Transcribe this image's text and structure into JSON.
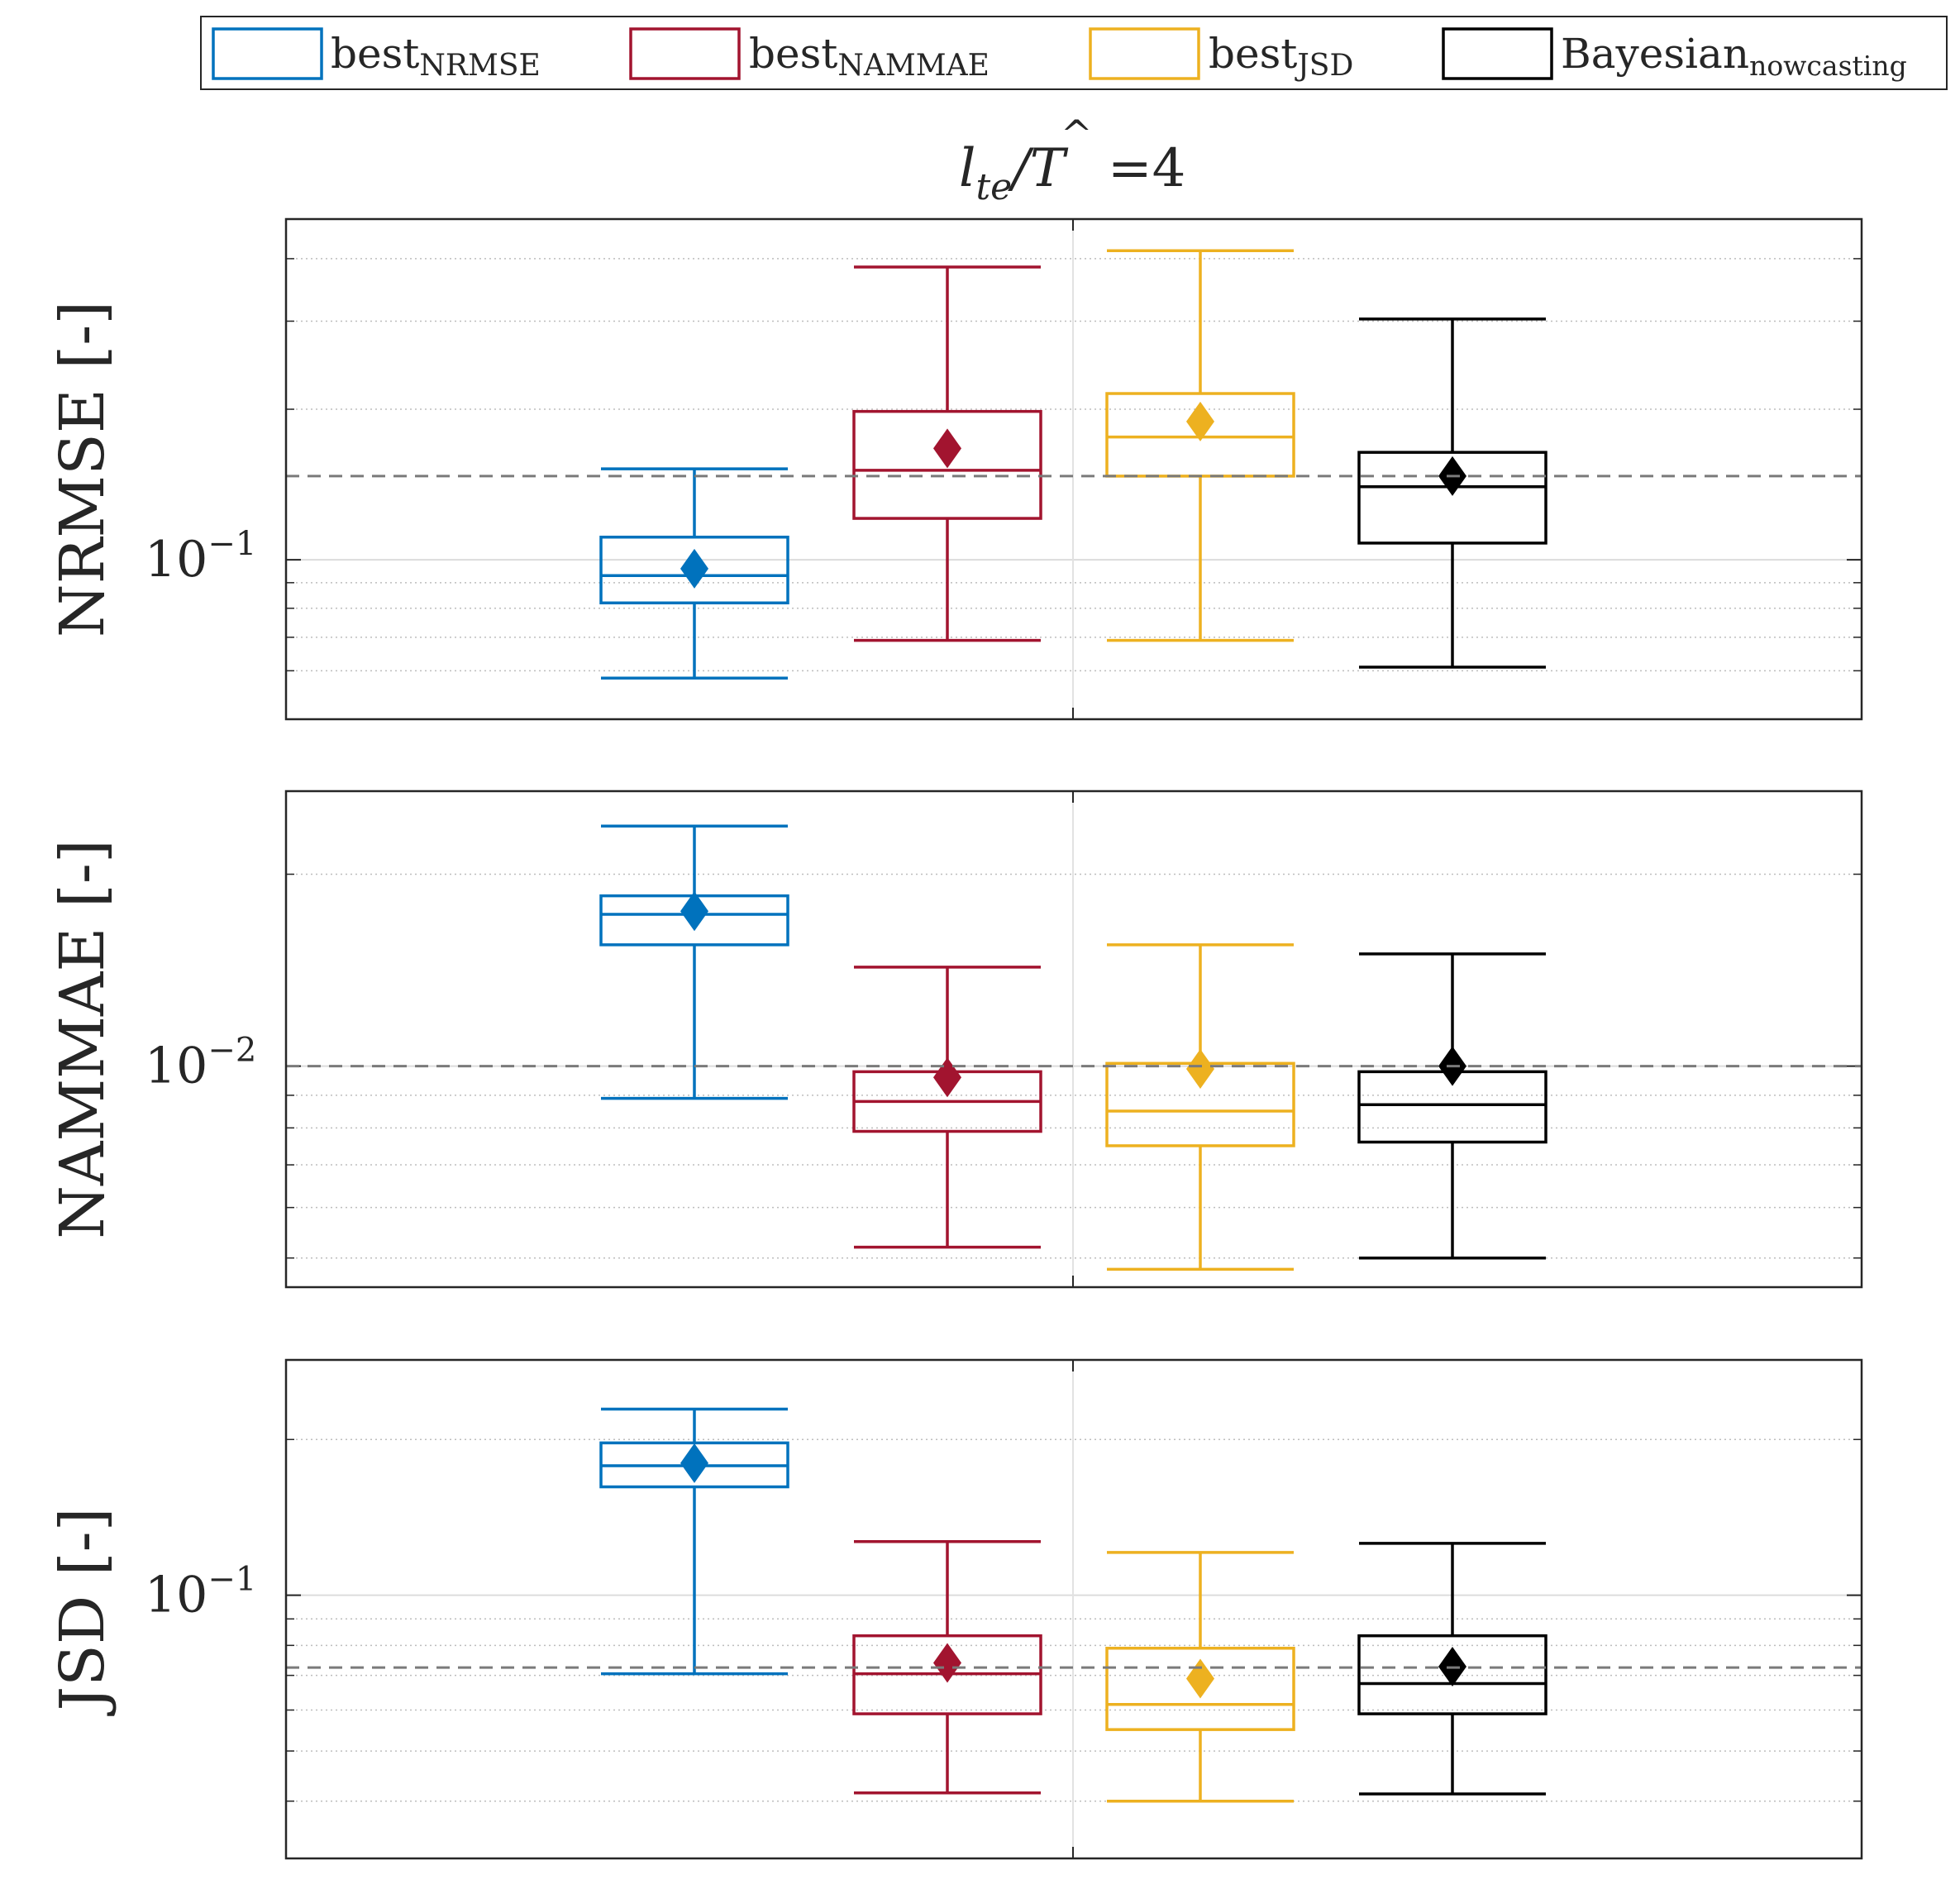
{
  "legend": {
    "items": [
      {
        "base": "best",
        "sub": "NRMSE",
        "color": "#0072BD"
      },
      {
        "base": "best",
        "sub": "NAMMAE",
        "color": "#A2142F"
      },
      {
        "base": "best",
        "sub": "JSD",
        "color": "#EDB120"
      },
      {
        "base": "Bayesian",
        "sub": "nowcasting",
        "color": "#000000"
      }
    ]
  },
  "title": {
    "l": "l",
    "l_sub": "te",
    "slash": "/",
    "T": "T",
    "hat": "^",
    "eq": "=4"
  },
  "chart_data": [
    {
      "type": "box",
      "ylabel": "NRMSE [-]",
      "yscale": "log",
      "ylim": [
        0.048,
        0.48
      ],
      "tick_label": {
        "base": "10",
        "exp": "−1"
      },
      "tick_value": 0.1,
      "minor_ticks": [
        0.06,
        0.07,
        0.08,
        0.09,
        0.2,
        0.3,
        0.4
      ],
      "reference_line": 0.147,
      "boxes": [
        {
          "name": "best_NRMSE",
          "whisker_low": 0.058,
          "q1": 0.082,
          "median": 0.093,
          "q3": 0.111,
          "whisker_high": 0.152,
          "mean": 0.096,
          "color": "#0072BD"
        },
        {
          "name": "best_NAMMAE",
          "whisker_low": 0.069,
          "q1": 0.121,
          "median": 0.151,
          "q3": 0.198,
          "whisker_high": 0.385,
          "mean": 0.167,
          "color": "#A2142F"
        },
        {
          "name": "best_JSD",
          "whisker_low": 0.069,
          "q1": 0.147,
          "median": 0.176,
          "q3": 0.215,
          "whisker_high": 0.415,
          "mean": 0.189,
          "color": "#EDB120"
        },
        {
          "name": "Bayesian_nowcasting",
          "whisker_low": 0.061,
          "q1": 0.108,
          "median": 0.14,
          "q3": 0.164,
          "whisker_high": 0.303,
          "mean": 0.147,
          "color": "#000000"
        }
      ]
    },
    {
      "type": "box",
      "ylabel": "NAMMAE [-]",
      "yscale": "log",
      "ylim": [
        0.0045,
        0.027
      ],
      "tick_label": {
        "base": "10",
        "exp": "−2"
      },
      "tick_value": 0.01,
      "minor_ticks": [
        0.005,
        0.006,
        0.007,
        0.008,
        0.009,
        0.02
      ],
      "reference_line": 0.01,
      "boxes": [
        {
          "name": "best_NRMSE",
          "whisker_low": 0.0089,
          "q1": 0.0155,
          "median": 0.0173,
          "q3": 0.0185,
          "whisker_high": 0.0238,
          "mean": 0.0175,
          "color": "#0072BD"
        },
        {
          "name": "best_NAMMAE",
          "whisker_low": 0.0052,
          "q1": 0.0079,
          "median": 0.0088,
          "q3": 0.0098,
          "whisker_high": 0.0143,
          "mean": 0.0096,
          "color": "#A2142F"
        },
        {
          "name": "best_JSD",
          "whisker_low": 0.0048,
          "q1": 0.0075,
          "median": 0.0085,
          "q3": 0.0101,
          "whisker_high": 0.0155,
          "mean": 0.0099,
          "color": "#EDB120"
        },
        {
          "name": "Bayesian_nowcasting",
          "whisker_low": 0.005,
          "q1": 0.0076,
          "median": 0.0087,
          "q3": 0.0098,
          "whisker_high": 0.015,
          "mean": 0.01,
          "color": "#000000"
        }
      ]
    },
    {
      "type": "box",
      "ylabel": "JSD [-]",
      "yscale": "log",
      "ylim": [
        0.031,
        0.285
      ],
      "tick_label": {
        "base": "10",
        "exp": "−1"
      },
      "tick_value": 0.1,
      "minor_ticks": [
        0.04,
        0.05,
        0.06,
        0.07,
        0.08,
        0.09,
        0.2
      ],
      "reference_line": 0.0725,
      "boxes": [
        {
          "name": "best_NRMSE",
          "whisker_low": 0.0705,
          "q1": 0.162,
          "median": 0.178,
          "q3": 0.197,
          "whisker_high": 0.229,
          "mean": 0.18,
          "color": "#0072BD"
        },
        {
          "name": "best_NAMMAE",
          "whisker_low": 0.0415,
          "q1": 0.059,
          "median": 0.0705,
          "q3": 0.0835,
          "whisker_high": 0.127,
          "mean": 0.074,
          "color": "#A2142F"
        },
        {
          "name": "best_JSD",
          "whisker_low": 0.04,
          "q1": 0.055,
          "median": 0.0615,
          "q3": 0.079,
          "whisker_high": 0.121,
          "mean": 0.069,
          "color": "#EDB120"
        },
        {
          "name": "Bayesian_nowcasting",
          "whisker_low": 0.0413,
          "q1": 0.059,
          "median": 0.0675,
          "q3": 0.0835,
          "whisker_high": 0.126,
          "mean": 0.0728,
          "color": "#000000"
        }
      ]
    }
  ]
}
